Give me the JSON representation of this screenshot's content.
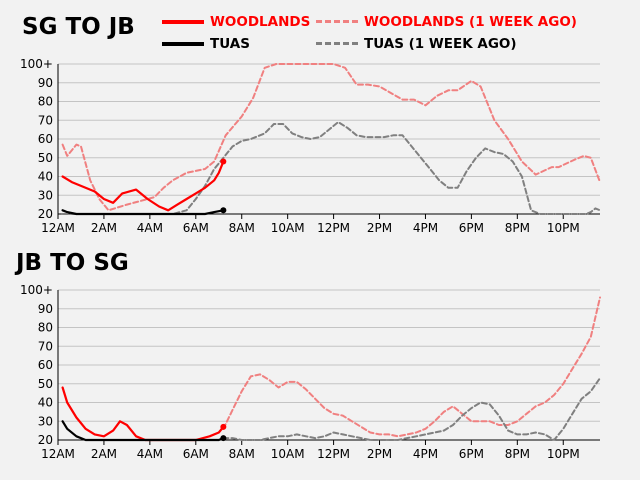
{
  "legend": {
    "woodlands": "WOODLANDS",
    "tuas": "TUAS",
    "woodlands_prev": "WOODLANDS (1 WEEK AGO)",
    "tuas_prev": "TUAS (1 WEEK AGO)"
  },
  "colors": {
    "woodlands": "#ff0000",
    "tuas": "#000000",
    "woodlands_prev": "#f08080",
    "tuas_prev": "#808080",
    "grid": "#c4c4c4",
    "background": "#f2f2f2"
  },
  "chart_data": [
    {
      "type": "line",
      "title": "SG TO JB",
      "x_unit": "hour of day",
      "xlim": [
        0,
        23.6
      ],
      "ylim": [
        20,
        100
      ],
      "y_ticks": [
        "20",
        "30",
        "40",
        "50",
        "60",
        "70",
        "80",
        "90",
        "100+"
      ],
      "x_ticks": [
        "12AM",
        "2AM",
        "4AM",
        "6AM",
        "8AM",
        "10AM",
        "12PM",
        "2PM",
        "4PM",
        "6PM",
        "8PM",
        "10PM"
      ],
      "grid": "horizontal",
      "series": [
        {
          "name": "WOODLANDS (1 WEEK AGO)",
          "style": "dashed",
          "x": [
            0.2,
            0.4,
            0.8,
            1.0,
            1.4,
            1.8,
            2.2,
            3.0,
            3.6,
            4.2,
            4.6,
            5.0,
            5.6,
            6.0,
            6.4,
            6.8,
            7.3,
            8.0,
            8.5,
            9.0,
            9.5,
            10.0,
            11.0,
            12.0,
            12.5,
            13.0,
            13.5,
            14.0,
            15.0,
            15.5,
            16.0,
            16.5,
            17.0,
            17.4,
            18.0,
            18.4,
            19.0,
            19.6,
            20.2,
            20.8,
            21.5,
            21.8,
            22.5,
            22.9,
            23.2,
            23.6
          ],
          "y": [
            57,
            51,
            57,
            56,
            38,
            28,
            22,
            25,
            27,
            29,
            34,
            38,
            42,
            43,
            44,
            48,
            62,
            72,
            82,
            98,
            100,
            100,
            100,
            100,
            98,
            89,
            89,
            88,
            81,
            81,
            78,
            83,
            86,
            86,
            91,
            88,
            70,
            60,
            48,
            41,
            45,
            45,
            49,
            51,
            50,
            37
          ]
        },
        {
          "name": "TUAS (1 WEEK AGO)",
          "style": "dashed",
          "x": [
            0.2,
            3.0,
            4.0,
            5.0,
            5.6,
            6.0,
            6.4,
            6.8,
            7.2,
            7.6,
            8.0,
            8.4,
            9.0,
            9.4,
            9.8,
            10.2,
            10.6,
            11.0,
            11.4,
            11.8,
            12.2,
            12.6,
            13.0,
            13.4,
            13.8,
            14.2,
            14.6,
            15.0,
            15.4,
            15.8,
            16.2,
            16.6,
            17.0,
            17.4,
            17.8,
            18.2,
            18.6,
            19.0,
            19.4,
            19.8,
            20.2,
            20.6,
            21.0,
            21.4,
            21.8,
            22.2,
            22.6,
            23.0,
            23.2,
            23.4,
            23.6
          ],
          "y": [
            20,
            20,
            20,
            20,
            22,
            28,
            35,
            44,
            50,
            56,
            59,
            60,
            63,
            68,
            68,
            63,
            61,
            60,
            61,
            65,
            69,
            66,
            62,
            61,
            61,
            61,
            62,
            62,
            56,
            50,
            44,
            38,
            34,
            34,
            43,
            50,
            55,
            53,
            52,
            48,
            40,
            22,
            20,
            20,
            20,
            20,
            20,
            20,
            21,
            23,
            22
          ]
        },
        {
          "name": "WOODLANDS",
          "style": "solid",
          "marker_last": true,
          "x": [
            0.2,
            0.6,
            1.0,
            1.6,
            2.0,
            2.4,
            2.8,
            3.4,
            3.9,
            4.4,
            4.8,
            5.2,
            5.6,
            6.0,
            6.4,
            6.8,
            7.0,
            7.2
          ],
          "y": [
            40,
            37,
            35,
            32,
            28,
            26,
            31,
            33,
            28,
            24,
            22,
            25,
            28,
            31,
            34,
            38,
            42,
            48
          ]
        },
        {
          "name": "TUAS",
          "style": "solid",
          "marker_last": true,
          "x": [
            0.2,
            0.4,
            0.8,
            1.2,
            2.0,
            3.0,
            4.0,
            5.0,
            5.6,
            6.0,
            6.4,
            6.8,
            7.2
          ],
          "y": [
            22,
            21,
            20,
            20,
            20,
            20,
            20,
            20,
            20,
            20,
            20,
            21,
            22
          ]
        }
      ]
    },
    {
      "type": "line",
      "title": "JB TO SG",
      "x_unit": "hour of day",
      "xlim": [
        0,
        23.6
      ],
      "ylim": [
        20,
        100
      ],
      "y_ticks": [
        "20",
        "30",
        "40",
        "50",
        "60",
        "70",
        "80",
        "90",
        "100+"
      ],
      "x_ticks": [
        "12AM",
        "2AM",
        "4AM",
        "6AM",
        "8AM",
        "10AM",
        "12PM",
        "2PM",
        "4PM",
        "6PM",
        "8PM",
        "10PM"
      ],
      "grid": "horizontal",
      "series": [
        {
          "name": "WOODLANDS (1 WEEK AGO)",
          "style": "dashed",
          "x": [
            7.2,
            7.6,
            8.0,
            8.4,
            8.8,
            9.2,
            9.6,
            10.0,
            10.4,
            10.8,
            11.2,
            11.6,
            12.0,
            12.4,
            12.8,
            13.2,
            13.6,
            14.0,
            14.4,
            14.8,
            15.2,
            15.6,
            16.0,
            16.4,
            16.8,
            17.2,
            17.6,
            18.0,
            18.4,
            18.8,
            19.2,
            19.6,
            20.0,
            20.4,
            20.8,
            21.2,
            21.6,
            22.0,
            22.4,
            22.8,
            23.2,
            23.6
          ],
          "y": [
            26,
            36,
            46,
            54,
            55,
            52,
            48,
            51,
            51,
            47,
            42,
            37,
            34,
            33,
            30,
            27,
            24,
            23,
            23,
            22,
            23,
            24,
            26,
            30,
            35,
            38,
            34,
            30,
            30,
            30,
            28,
            28,
            30,
            34,
            38,
            40,
            44,
            50,
            58,
            66,
            75,
            96
          ]
        },
        {
          "name": "TUAS (1 WEEK AGO)",
          "style": "dashed",
          "x": [
            7.2,
            7.6,
            8.0,
            8.4,
            8.8,
            9.2,
            9.6,
            10.0,
            10.4,
            10.8,
            11.2,
            11.6,
            12.0,
            12.4,
            12.8,
            13.2,
            13.6,
            14.0,
            14.4,
            14.8,
            15.2,
            15.6,
            16.0,
            16.4,
            16.8,
            17.2,
            17.6,
            18.0,
            18.4,
            18.8,
            19.2,
            19.6,
            20.0,
            20.4,
            20.8,
            21.2,
            21.6,
            22.0,
            22.4,
            22.8,
            23.2,
            23.6
          ],
          "y": [
            21,
            21,
            20,
            20,
            20,
            21,
            22,
            22,
            23,
            22,
            21,
            22,
            24,
            23,
            22,
            21,
            20,
            20,
            20,
            20,
            21,
            22,
            23,
            24,
            25,
            28,
            33,
            37,
            40,
            39,
            33,
            25,
            23,
            23,
            24,
            23,
            20,
            26,
            34,
            42,
            46,
            53
          ]
        },
        {
          "name": "WOODLANDS",
          "style": "solid",
          "marker_last": true,
          "x": [
            0.2,
            0.4,
            0.8,
            1.2,
            1.6,
            2.0,
            2.4,
            2.7,
            3.0,
            3.4,
            3.8,
            4.2,
            5.0,
            6.0,
            6.6,
            7.0,
            7.2
          ],
          "y": [
            48,
            40,
            32,
            26,
            23,
            22,
            25,
            30,
            28,
            22,
            20,
            20,
            20,
            20,
            22,
            24,
            27
          ]
        },
        {
          "name": "TUAS",
          "style": "solid",
          "marker_last": true,
          "x": [
            0.2,
            0.4,
            0.8,
            1.2,
            1.6,
            2.0,
            3.0,
            4.0,
            5.0,
            6.0,
            7.0,
            7.2
          ],
          "y": [
            30,
            26,
            22,
            20,
            20,
            20,
            20,
            20,
            20,
            20,
            20,
            21
          ]
        }
      ]
    }
  ]
}
